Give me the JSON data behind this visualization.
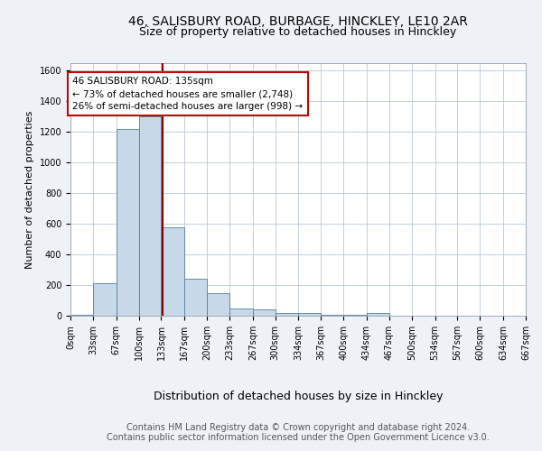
{
  "title_line1": "46, SALISBURY ROAD, BURBAGE, HINCKLEY, LE10 2AR",
  "title_line2": "Size of property relative to detached houses in Hinckley",
  "xlabel": "Distribution of detached houses by size in Hinckley",
  "ylabel": "Number of detached properties",
  "footer1": "Contains HM Land Registry data © Crown copyright and database right 2024.",
  "footer2": "Contains public sector information licensed under the Open Government Licence v3.0.",
  "bar_edges": [
    0,
    33,
    67,
    100,
    133,
    167,
    200,
    233,
    267,
    300,
    334,
    367,
    400,
    434,
    467,
    500,
    534,
    567,
    600,
    634,
    667
  ],
  "bar_heights": [
    5,
    215,
    1220,
    1300,
    580,
    240,
    145,
    50,
    40,
    20,
    15,
    5,
    5,
    15,
    0,
    0,
    0,
    0,
    0,
    0
  ],
  "bar_color": "#c8d8e8",
  "bar_edgecolor": "#5080a0",
  "property_size": 135,
  "property_line_color": "#8b0000",
  "annotation_line1": "46 SALISBURY ROAD: 135sqm",
  "annotation_line2": "← 73% of detached houses are smaller (2,748)",
  "annotation_line3": "26% of semi-detached houses are larger (998) →",
  "annotation_box_edgecolor": "#cc0000",
  "annotation_box_facecolor": "#ffffff",
  "ylim": [
    0,
    1650
  ],
  "yticks": [
    0,
    200,
    400,
    600,
    800,
    1000,
    1200,
    1400,
    1600
  ],
  "bg_color": "#eef2f7",
  "plot_bg_color": "#ffffff",
  "grid_color": "#b8c8d8",
  "title_fontsize": 10,
  "subtitle_fontsize": 9,
  "tick_label_fontsize": 7,
  "ylabel_fontsize": 8,
  "xlabel_fontsize": 9,
  "annotation_fontsize": 7.5,
  "footer_fontsize": 7
}
